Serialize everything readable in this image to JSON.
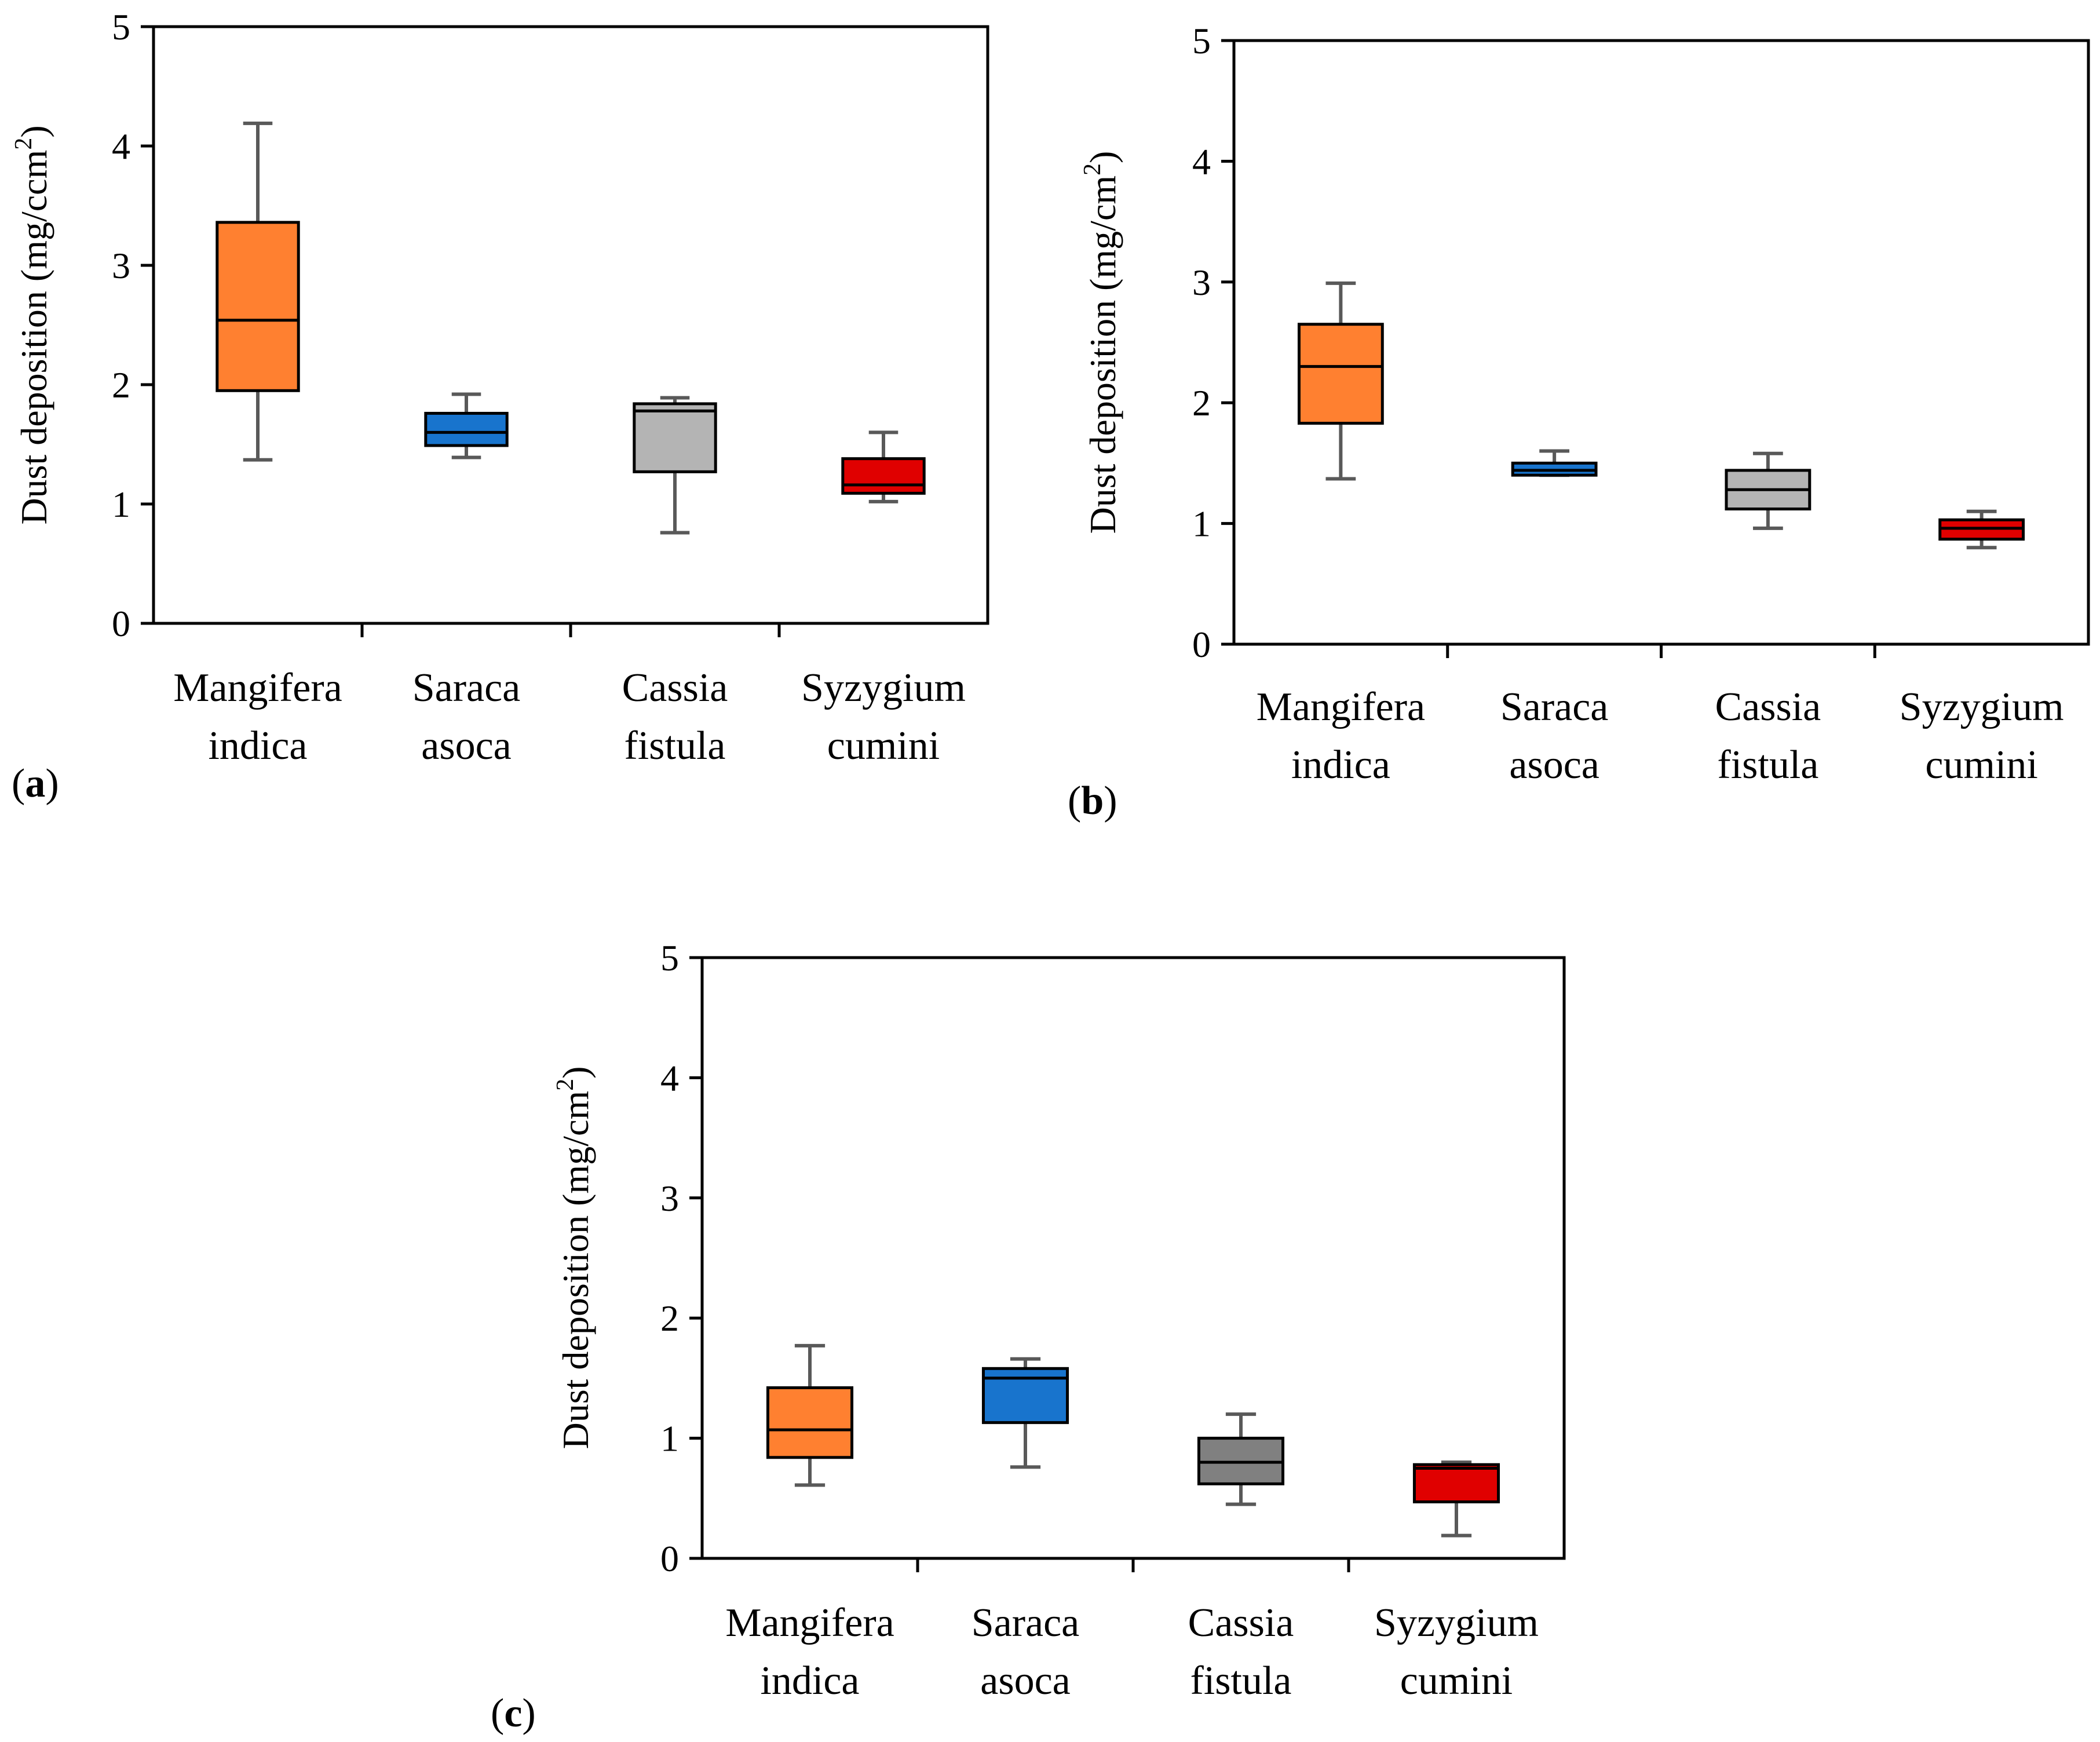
{
  "figure": {
    "colors": {
      "orange": "#FF8030",
      "blue": "#1874CD",
      "light_gray": "#B4B4B4",
      "dark_gray": "#808080",
      "red": "#E00000",
      "whisker": "#595959",
      "axis": "#000000"
    }
  },
  "chart_data": [
    {
      "id": "a",
      "type": "boxplot",
      "panel_label": "a",
      "ylabel_main": "Dust deposition (mg/ccm",
      "ylabel_sup": "2",
      "ylabel_close": ")",
      "ylim": [
        0,
        5
      ],
      "yticks": [
        "0",
        "1",
        "2",
        "3",
        "4",
        "5"
      ],
      "categories": [
        {
          "line1": "Mangifera",
          "line2": "indica"
        },
        {
          "line1": "Saraca",
          "line2": "asoca"
        },
        {
          "line1": "Cassia",
          "line2": "fistula"
        },
        {
          "line1": "Syzygium",
          "line2": "cumini"
        }
      ],
      "boxes": [
        {
          "min": 1.37,
          "q1": 1.95,
          "median": 2.54,
          "q3": 3.36,
          "max": 4.19,
          "color": "#FF8030"
        },
        {
          "min": 1.39,
          "q1": 1.49,
          "median": 1.6,
          "q3": 1.76,
          "max": 1.92,
          "color": "#1874CD"
        },
        {
          "min": 0.76,
          "q1": 1.27,
          "median": 1.78,
          "q3": 1.84,
          "max": 1.89,
          "color": "#B4B4B4"
        },
        {
          "min": 1.02,
          "q1": 1.09,
          "median": 1.16,
          "q3": 1.38,
          "max": 1.6,
          "color": "#E00000"
        }
      ]
    },
    {
      "id": "b",
      "type": "boxplot",
      "panel_label": "b",
      "ylabel_main": "Dust deposition (mg/cm",
      "ylabel_sup": "2",
      "ylabel_close": ")",
      "ylim": [
        0,
        5
      ],
      "yticks": [
        "0",
        "1",
        "2",
        "3",
        "4",
        "5"
      ],
      "categories": [
        {
          "line1": "Mangifera",
          "line2": "indica"
        },
        {
          "line1": "Saraca",
          "line2": "asoca"
        },
        {
          "line1": "Cassia",
          "line2": "fistula"
        },
        {
          "line1": "Syzygium",
          "line2": "cumini"
        }
      ],
      "boxes": [
        {
          "min": 1.37,
          "q1": 1.83,
          "median": 2.3,
          "q3": 2.65,
          "max": 2.99,
          "color": "#FF8030"
        },
        {
          "min": 1.4,
          "q1": 1.4,
          "median": 1.44,
          "q3": 1.5,
          "max": 1.6,
          "color": "#1874CD"
        },
        {
          "min": 0.96,
          "q1": 1.12,
          "median": 1.28,
          "q3": 1.44,
          "max": 1.58,
          "color": "#B4B4B4"
        },
        {
          "min": 0.8,
          "q1": 0.87,
          "median": 0.96,
          "q3": 1.03,
          "max": 1.1,
          "color": "#E00000"
        }
      ]
    },
    {
      "id": "c",
      "type": "boxplot",
      "panel_label": "c",
      "ylabel_main": "Dust deposition (mg/cm",
      "ylabel_sup": "2",
      "ylabel_close": ")",
      "ylim": [
        0,
        5
      ],
      "yticks": [
        "0",
        "1",
        "2",
        "3",
        "4",
        "5"
      ],
      "categories": [
        {
          "line1": "Mangifera",
          "line2": "indica"
        },
        {
          "line1": "Saraca",
          "line2": "asoca"
        },
        {
          "line1": "Cassia",
          "line2": "fistula"
        },
        {
          "line1": "Syzygium",
          "line2": "cumini"
        }
      ],
      "boxes": [
        {
          "min": 0.61,
          "q1": 0.84,
          "median": 1.07,
          "q3": 1.42,
          "max": 1.77,
          "color": "#FF8030"
        },
        {
          "min": 0.76,
          "q1": 1.13,
          "median": 1.5,
          "q3": 1.58,
          "max": 1.66,
          "color": "#1874CD"
        },
        {
          "min": 0.45,
          "q1": 0.62,
          "median": 0.8,
          "q3": 1.0,
          "max": 1.2,
          "color": "#808080"
        },
        {
          "min": 0.19,
          "q1": 0.47,
          "median": 0.75,
          "q3": 0.78,
          "max": 0.8,
          "color": "#E00000"
        }
      ]
    }
  ]
}
